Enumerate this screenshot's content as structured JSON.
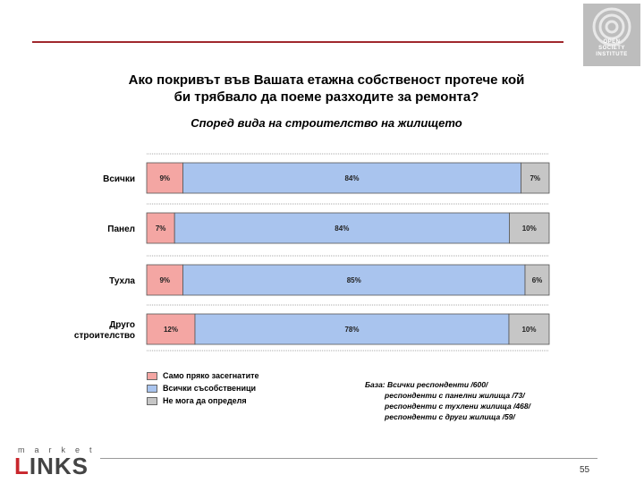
{
  "header": {
    "title_line1": "Ако покривът във Вашата етажна собственост протече кой",
    "title_line2": "би трябвало да поеме разходите за ремонта?",
    "subtitle": "Според вида на строителство на жилището",
    "badge_lines": [
      "OPEN",
      "SOCIETY",
      "INSTITUTE"
    ]
  },
  "chart_data": {
    "type": "bar",
    "orientation": "horizontal-stacked-100",
    "categories": [
      "Всички",
      "Панел",
      "Тухла",
      "Друго строителство"
    ],
    "series": [
      {
        "name": "Само пряко засегнатите",
        "values": [
          9,
          7,
          9,
          12
        ],
        "color": "#f4a6a3"
      },
      {
        "name": "Всички съсобственици",
        "values": [
          84,
          84,
          85,
          78
        ],
        "color": "#a9c4ee"
      },
      {
        "name": "Не мога да определя",
        "values": [
          7,
          10,
          6,
          10
        ],
        "color": "#c6c6c6"
      }
    ],
    "value_labels": [
      [
        "9%",
        "84%",
        "7%"
      ],
      [
        "7%",
        "84%",
        "10%"
      ],
      [
        "9%",
        "85%",
        "6%"
      ],
      [
        "12%",
        "78%",
        "10%"
      ]
    ],
    "legend_position": "bottom-left",
    "grid": false
  },
  "legend": [
    "Само пряко засегнатите",
    "Всички съсобственици",
    "Не мога да определя"
  ],
  "base_note": [
    "База: Всички респонденти /600/",
    "респонденти с панелни жилища /73/",
    "респонденти с тухлени жилища /468/",
    "респонденти с други жилища /59/"
  ],
  "footer": {
    "page_number": "55",
    "logo_small": "market",
    "logo_big_first": "L",
    "logo_big_rest": "INKS"
  }
}
